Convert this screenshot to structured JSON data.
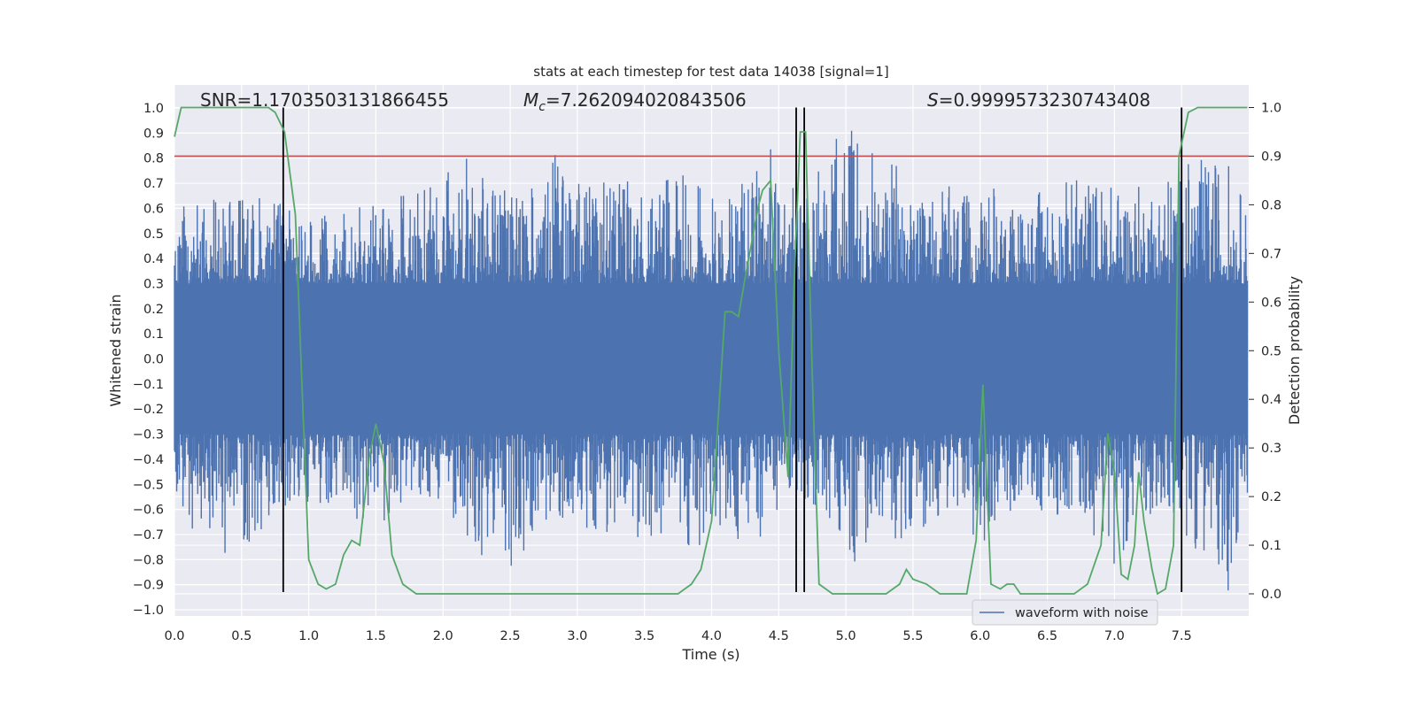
{
  "chart_data": {
    "type": "line",
    "title": "stats at each timestep for test data 14038 [signal=1]",
    "xlabel": "Time (s)",
    "ylabel": "Whitened strain",
    "ylabel_right": "Detection probability",
    "xlim": [
      0.0,
      8.0
    ],
    "ylim": [
      -1.05,
      1.05
    ],
    "ylim_right": [
      -0.05,
      1.04
    ],
    "x_ticks": [
      "0.0",
      "0.5",
      "1.0",
      "1.5",
      "2.0",
      "2.5",
      "3.0",
      "3.5",
      "4.0",
      "4.5",
      "5.0",
      "5.5",
      "6.0",
      "6.5",
      "7.0",
      "7.5"
    ],
    "y_ticks": [
      "1.0",
      "0.9",
      "0.8",
      "0.7",
      "0.6",
      "0.5",
      "0.4",
      "0.3",
      "0.2",
      "0.1",
      "0.0",
      "−0.1",
      "−0.2",
      "−0.3",
      "−0.4",
      "−0.5",
      "−0.6",
      "−0.7",
      "−0.8",
      "−0.9",
      "−1.0"
    ],
    "y_ticks_right": [
      "1.0",
      "0.9",
      "0.8",
      "0.7",
      "0.6",
      "0.5",
      "0.4",
      "0.3",
      "0.2",
      "0.1",
      "0.0"
    ],
    "annotations": {
      "snr": "SNR=1.1703503131866455",
      "mc_symbol": "M",
      "mc_sub": "c",
      "mc_value": "=7.262094020843506",
      "s_symbol": "S",
      "s_value": "=0.9999573230743408"
    },
    "threshold": 0.9,
    "vertical_lines": [
      0.81,
      4.63,
      4.69,
      7.5
    ],
    "legend": {
      "label": "waveform with noise",
      "location": "lower-right"
    },
    "colors": {
      "waveform": "#4c72b0",
      "probability": "#55a868",
      "threshold": "#c44e52",
      "vlines": "#000000",
      "background": "#eaeaf2",
      "grid": "#ffffff"
    },
    "waveform": {
      "name": "waveform with noise",
      "envelope": [
        [
          0.0,
          0.62,
          -0.55
        ],
        [
          0.25,
          0.65,
          -0.83
        ],
        [
          0.5,
          0.66,
          -0.72
        ],
        [
          0.65,
          0.65,
          -0.81
        ],
        [
          0.8,
          0.62,
          -0.6
        ],
        [
          1.0,
          0.55,
          -0.6
        ],
        [
          1.25,
          0.6,
          -0.6
        ],
        [
          1.5,
          0.62,
          -0.7
        ],
        [
          1.75,
          0.66,
          -0.55
        ],
        [
          2.0,
          0.7,
          -0.6
        ],
        [
          2.1,
          0.89,
          -0.7
        ],
        [
          2.25,
          0.8,
          -0.78
        ],
        [
          2.5,
          0.66,
          -0.83
        ],
        [
          2.75,
          0.7,
          -0.7
        ],
        [
          2.85,
          0.84,
          -0.65
        ],
        [
          3.0,
          0.7,
          -0.67
        ],
        [
          3.25,
          0.72,
          -0.7
        ],
        [
          3.5,
          0.7,
          -0.75
        ],
        [
          3.75,
          0.72,
          -0.65
        ],
        [
          3.85,
          0.8,
          -0.83
        ],
        [
          4.0,
          0.67,
          -0.7
        ],
        [
          4.25,
          0.72,
          -0.75
        ],
        [
          4.45,
          0.86,
          -0.7
        ],
        [
          4.55,
          0.65,
          -0.55
        ],
        [
          4.75,
          0.8,
          -0.6
        ],
        [
          4.9,
          0.87,
          -0.7
        ],
        [
          5.1,
          1.0,
          -0.84
        ],
        [
          5.25,
          0.72,
          -0.7
        ],
        [
          5.4,
          0.82,
          -0.8
        ],
        [
          5.5,
          0.6,
          -0.7
        ],
        [
          5.75,
          0.7,
          -0.62
        ],
        [
          6.0,
          0.62,
          -0.75
        ],
        [
          6.1,
          0.7,
          -0.67
        ],
        [
          6.25,
          0.62,
          -0.6
        ],
        [
          6.5,
          0.68,
          -0.62
        ],
        [
          6.75,
          0.75,
          -0.63
        ],
        [
          7.0,
          0.7,
          -0.82
        ],
        [
          7.25,
          0.7,
          -0.62
        ],
        [
          7.5,
          0.8,
          -0.7
        ],
        [
          7.75,
          0.8,
          -0.84
        ],
        [
          7.85,
          0.8,
          -0.93
        ],
        [
          7.99,
          0.6,
          -0.57
        ]
      ]
    },
    "probability": {
      "name": "detection probability",
      "x": [
        0.0,
        0.05,
        0.15,
        0.3,
        0.45,
        0.6,
        0.7,
        0.75,
        0.82,
        0.9,
        1.0,
        1.07,
        1.13,
        1.2,
        1.26,
        1.32,
        1.38,
        1.45,
        1.5,
        1.56,
        1.62,
        1.7,
        1.8,
        1.9,
        2.0,
        2.2,
        2.5,
        2.8,
        3.0,
        3.2,
        3.5,
        3.75,
        3.85,
        3.92,
        4.0,
        4.1,
        4.15,
        4.2,
        4.25,
        4.35,
        4.38,
        4.44,
        4.5,
        4.57,
        4.62,
        4.66,
        4.7,
        4.75,
        4.8,
        4.9,
        5.0,
        5.1,
        5.2,
        5.3,
        5.4,
        5.45,
        5.5,
        5.6,
        5.7,
        5.8,
        5.9,
        5.97,
        6.02,
        6.08,
        6.15,
        6.2,
        6.25,
        6.3,
        6.4,
        6.5,
        6.6,
        6.7,
        6.8,
        6.9,
        6.95,
        7.0,
        7.05,
        7.1,
        7.15,
        7.18,
        7.22,
        7.28,
        7.32,
        7.38,
        7.44,
        7.48,
        7.55,
        7.62,
        7.7,
        7.8,
        7.99
      ],
      "values": [
        0.94,
        1.0,
        1.0,
        1.0,
        1.0,
        1.0,
        1.0,
        0.99,
        0.95,
        0.78,
        0.07,
        0.02,
        0.01,
        0.02,
        0.08,
        0.11,
        0.1,
        0.28,
        0.35,
        0.27,
        0.08,
        0.02,
        0.0,
        0.0,
        0.0,
        0.0,
        0.0,
        0.0,
        0.0,
        0.0,
        0.0,
        0.0,
        0.02,
        0.05,
        0.15,
        0.58,
        0.58,
        0.57,
        0.65,
        0.8,
        0.83,
        0.85,
        0.5,
        0.24,
        0.68,
        0.95,
        0.95,
        0.45,
        0.02,
        0.0,
        0.0,
        0.0,
        0.0,
        0.0,
        0.02,
        0.05,
        0.03,
        0.02,
        0.0,
        0.0,
        0.0,
        0.11,
        0.43,
        0.02,
        0.01,
        0.02,
        0.02,
        0.0,
        0.0,
        0.0,
        0.0,
        0.0,
        0.02,
        0.1,
        0.33,
        0.25,
        0.04,
        0.03,
        0.1,
        0.25,
        0.15,
        0.05,
        0.0,
        0.01,
        0.1,
        0.9,
        0.99,
        1.0,
        1.0,
        1.0,
        1.0
      ]
    }
  }
}
